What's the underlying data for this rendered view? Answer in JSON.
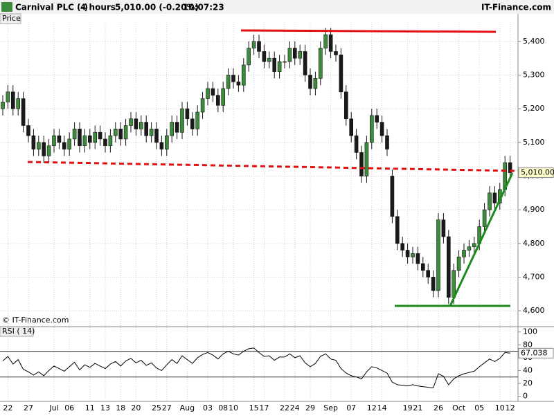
{
  "header": {
    "title": "Carnival PLC (-)",
    "interval": "4 hours",
    "quote": "5,010.00 (-0.20%)",
    "time": "10:07:23",
    "brand": "IT-Finance.com"
  },
  "chart_data": [
    {
      "type": "candlestick",
      "label": "Price",
      "watermark": "© IT-Finance.com",
      "up_color": "#3c8c3c",
      "down_color": "#1a1a1a",
      "grid": true,
      "price_tag": "5,010.00",
      "categories": [
        null,
        "22",
        null,
        null,
        null,
        "27",
        null,
        null,
        null,
        null,
        "Jul",
        null,
        null,
        "06",
        null,
        null,
        null,
        "11",
        null,
        null,
        "13",
        null,
        null,
        "18",
        null,
        null,
        "20",
        null,
        null,
        null,
        "25",
        null,
        "27",
        null,
        null,
        null,
        "Aug",
        null,
        null,
        null,
        "03",
        null,
        null,
        "08",
        null,
        "10",
        null,
        null,
        null,
        "15",
        null,
        "17",
        null,
        null,
        null,
        "22",
        null,
        "24",
        null,
        null,
        "29",
        null,
        null,
        null,
        "Sep",
        null,
        null,
        null,
        "07",
        null,
        null,
        null,
        "12",
        null,
        "14",
        null,
        null,
        null,
        null,
        "19",
        null,
        "21",
        null,
        null,
        null,
        "26",
        null,
        null,
        null,
        "Oct",
        null,
        null,
        null,
        "05",
        null,
        null,
        null,
        "10",
        null,
        "12"
      ],
      "open": [
        5200,
        5220,
        5250,
        5200,
        5230,
        5150,
        5120,
        5080,
        5100,
        5060,
        5090,
        5120,
        5100,
        5080,
        5110,
        5140,
        5090,
        5120,
        5100,
        5130,
        5110,
        5090,
        5120,
        5140,
        5110,
        5150,
        5170,
        5140,
        5160,
        5120,
        5140,
        5100,
        5080,
        5120,
        5160,
        5130,
        5200,
        5170,
        5140,
        5190,
        5230,
        5260,
        5240,
        5210,
        5260,
        5300,
        5280,
        5270,
        5330,
        5380,
        5400,
        5370,
        5340,
        5350,
        5310,
        5340,
        5340,
        5380,
        5350,
        5370,
        5300,
        5260,
        5290,
        5380,
        5420,
        5370,
        5360,
        5250,
        5170,
        5120,
        5070,
        5000,
        5100,
        5180,
        5160,
        5120,
        5000,
        4880,
        4800,
        4780,
        4760,
        4770,
        4740,
        4720,
        4700,
        4660,
        4870,
        4820,
        4640,
        4720,
        4760,
        4780,
        4790,
        4800,
        4850,
        4900,
        4950,
        4920,
        4960,
        5040
      ],
      "high": [
        5240,
        5270,
        5270,
        5250,
        5250,
        5170,
        5140,
        5120,
        5120,
        5110,
        5140,
        5140,
        5120,
        5130,
        5160,
        5160,
        5140,
        5140,
        5150,
        5150,
        5130,
        5140,
        5160,
        5160,
        5170,
        5190,
        5190,
        5180,
        5180,
        5160,
        5160,
        5120,
        5140,
        5180,
        5180,
        5220,
        5220,
        5190,
        5210,
        5250,
        5280,
        5280,
        5260,
        5280,
        5320,
        5320,
        5300,
        5350,
        5400,
        5420,
        5420,
        5390,
        5370,
        5370,
        5360,
        5360,
        5400,
        5400,
        5390,
        5390,
        5320,
        5310,
        5400,
        5440,
        5440,
        5390,
        5380,
        5270,
        5190,
        5140,
        5090,
        5120,
        5200,
        5200,
        5180,
        5140,
        5020,
        4900,
        4820,
        4800,
        4790,
        4790,
        4760,
        4740,
        4720,
        4890,
        4890,
        4840,
        4740,
        4780,
        4800,
        4810,
        4820,
        4870,
        4920,
        4970,
        4970,
        4980,
        5060,
        5060
      ],
      "low": [
        5180,
        5200,
        5180,
        5180,
        5130,
        5100,
        5060,
        5060,
        5040,
        5040,
        5070,
        5080,
        5060,
        5060,
        5090,
        5070,
        5070,
        5080,
        5080,
        5090,
        5070,
        5070,
        5100,
        5090,
        5090,
        5130,
        5120,
        5120,
        5100,
        5100,
        5080,
        5060,
        5060,
        5100,
        5110,
        5110,
        5150,
        5120,
        5120,
        5170,
        5210,
        5220,
        5190,
        5190,
        5240,
        5260,
        5250,
        5250,
        5310,
        5360,
        5350,
        5320,
        5320,
        5290,
        5290,
        5320,
        5320,
        5330,
        5330,
        5280,
        5240,
        5240,
        5270,
        5360,
        5350,
        5340,
        5230,
        5150,
        5100,
        5050,
        4980,
        4980,
        5080,
        5140,
        5100,
        5060,
        4860,
        4780,
        4760,
        4740,
        4740,
        4720,
        4700,
        4680,
        4640,
        4640,
        4800,
        4620,
        4620,
        4700,
        4740,
        4760,
        4770,
        4780,
        4830,
        4880,
        4900,
        4900,
        4940,
        4990
      ],
      "close": [
        5220,
        5250,
        5200,
        5230,
        5150,
        5120,
        5080,
        5100,
        5060,
        5090,
        5120,
        5100,
        5080,
        5110,
        5140,
        5090,
        5120,
        5100,
        5130,
        5110,
        5090,
        5120,
        5140,
        5110,
        5150,
        5170,
        5140,
        5160,
        5120,
        5140,
        5100,
        5080,
        5120,
        5160,
        5130,
        5200,
        5170,
        5140,
        5190,
        5230,
        5260,
        5240,
        5210,
        5260,
        5300,
        5280,
        5270,
        5330,
        5380,
        5400,
        5370,
        5340,
        5350,
        5310,
        5340,
        5340,
        5380,
        5350,
        5370,
        5300,
        5260,
        5290,
        5380,
        5420,
        5370,
        5360,
        5250,
        5170,
        5120,
        5070,
        5000,
        5100,
        5180,
        5160,
        5120,
        5080,
        4880,
        4800,
        4780,
        4760,
        4770,
        4740,
        4720,
        4700,
        4660,
        4870,
        4820,
        4640,
        4720,
        4760,
        4780,
        4790,
        4800,
        4850,
        4900,
        4950,
        4920,
        4960,
        5040,
        5010
      ],
      "ylim": [
        4557,
        5451
      ],
      "yticks": [
        {
          "value": 4600,
          "label": "4,600"
        },
        {
          "value": 4700,
          "label": "4,700"
        },
        {
          "value": 4800,
          "label": "4,800"
        },
        {
          "value": 4900,
          "label": "4,900"
        },
        {
          "value": 5000,
          "label": "5,000"
        },
        {
          "value": 5100,
          "label": "5,100"
        },
        {
          "value": 5200,
          "label": "5,200"
        },
        {
          "value": 5300,
          "label": "5,300"
        },
        {
          "value": 5400,
          "label": "5,400"
        }
      ]
    },
    {
      "type": "line",
      "label": "RSI ( 14)",
      "color": "#000000",
      "levels": [
        70,
        30
      ],
      "values": [
        55,
        62,
        50,
        57,
        42,
        38,
        33,
        38,
        32,
        40,
        47,
        43,
        39,
        46,
        53,
        41,
        49,
        45,
        51,
        47,
        43,
        50,
        54,
        47,
        55,
        59,
        52,
        56,
        48,
        52,
        44,
        40,
        49,
        57,
        51,
        63,
        57,
        51,
        60,
        65,
        68,
        64,
        58,
        66,
        70,
        66,
        64,
        70,
        74,
        75,
        68,
        62,
        63,
        56,
        61,
        61,
        66,
        60,
        63,
        52,
        46,
        51,
        62,
        66,
        58,
        56,
        43,
        36,
        32,
        30,
        27,
        38,
        46,
        44,
        40,
        36,
        22,
        18,
        17,
        16,
        18,
        16,
        15,
        14,
        13,
        35,
        31,
        18,
        27,
        32,
        35,
        37,
        39,
        46,
        52,
        58,
        54,
        59,
        68,
        67.038
      ],
      "ylim": [
        -8,
        104
      ],
      "yticks": [
        0,
        20,
        40,
        60,
        80,
        100
      ]
    }
  ]
}
